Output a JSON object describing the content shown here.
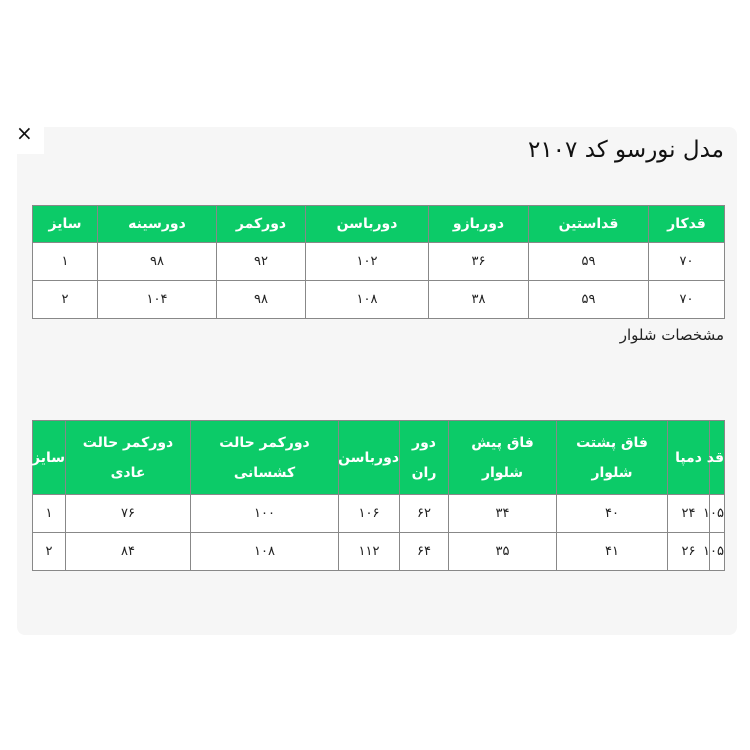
{
  "close_label": "×",
  "title": "مدل نورسو کد ۲۱۰۷",
  "top_table": {
    "headers": [
      "قدکار",
      "قداستین",
      "دوربازو",
      "دورباسن",
      "دورکمر",
      "دورسینه",
      "سایز"
    ],
    "rows": [
      [
        "۷۰",
        "۵۹",
        "۳۶",
        "۱۰۲",
        "۹۲",
        "۹۸",
        "۱"
      ],
      [
        "۷۰",
        "۵۹",
        "۳۸",
        "۱۰۸",
        "۹۸",
        "۱۰۴",
        "۲"
      ]
    ]
  },
  "subtitle": "مشخصات شلوار",
  "pants_table": {
    "headers": [
      "قد",
      "دمپا",
      "فاق پشتت شلوار",
      "فاق پیش شلوار",
      "دور ران",
      "دورباسن",
      "دورکمر حالت کشسانی",
      "دورکمر حالت عادی",
      "سایز"
    ],
    "rows": [
      [
        "۱۰۵",
        "۲۴",
        "۴۰",
        "۳۴",
        "۶۲",
        "۱۰۶",
        "۱۰۰",
        "۷۶",
        "۱"
      ],
      [
        "۱۰۵",
        "۲۶",
        "۴۱",
        "۳۵",
        "۶۴",
        "۱۱۲",
        "۱۰۸",
        "۸۴",
        "۲"
      ]
    ]
  },
  "colors": {
    "header_green": "#0ccb68",
    "panel": "#f6f6f6"
  }
}
